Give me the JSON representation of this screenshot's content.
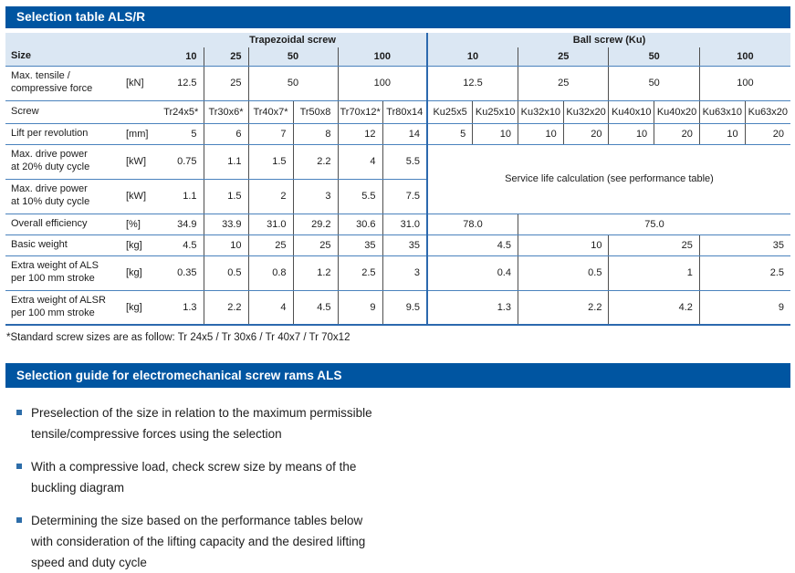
{
  "colors": {
    "brand_blue": "#0055a1",
    "header_row_bg": "#dbe7f3",
    "row_line_blue": "#4a82bd",
    "section_divider_blue": "#2c69ae",
    "column_line_dark": "#4f4f4f",
    "bullet_blue": "#2d6da9"
  },
  "table": {
    "title": "Selection table ALS/R",
    "footnote": "*Standard screw sizes are as follow: Tr 24x5 / Tr 30x6 / Tr 40x7 / Tr 70x12",
    "rows": [
      {
        "cls": "r-group",
        "name": "group-header-row",
        "cells": [
          {
            "t": "",
            "cs": 2,
            "c": "hdr nb"
          },
          {
            "t": "Trapezoidal screw",
            "cs": 6,
            "c": "hdr ctr bold nb",
            "n": "col-group-trapezoidal-screw"
          },
          {
            "t": "Ball screw (Ku)",
            "cs": 8,
            "c": "hdr ctr bold nb bl",
            "n": "col-group-ball-screw"
          }
        ]
      },
      {
        "cls": "r-size",
        "name": "size-row",
        "cells": [
          {
            "t": "Size",
            "cs": 2,
            "c": "hdr lbl bold",
            "n": "row-label-size"
          },
          {
            "t": "10",
            "c": "hdr num bold br"
          },
          {
            "t": "25",
            "c": "hdr num bold br"
          },
          {
            "t": "50",
            "cs": 2,
            "c": "hdr ctr bold br"
          },
          {
            "t": "100",
            "cs": 2,
            "c": "hdr ctr bold"
          },
          {
            "t": "10",
            "cs": 2,
            "c": "hdr ctr bold bl br"
          },
          {
            "t": "25",
            "cs": 2,
            "c": "hdr ctr bold br"
          },
          {
            "t": "50",
            "cs": 2,
            "c": "hdr ctr bold br"
          },
          {
            "t": "100",
            "cs": 2,
            "c": "hdr ctr bold"
          }
        ]
      },
      {
        "cls": "r-tall",
        "name": "max-force-row",
        "cells": [
          {
            "t": "Max. tensile /\ncompressive force",
            "c": "lbl",
            "n": "row-label"
          },
          {
            "t": "[kN]",
            "c": "unit",
            "n": "unit-cell"
          },
          {
            "t": "12.5",
            "c": "num br"
          },
          {
            "t": "25",
            "c": "num br"
          },
          {
            "t": "50",
            "cs": 2,
            "c": "ctr br"
          },
          {
            "t": "100",
            "cs": 2,
            "c": "ctr"
          },
          {
            "t": "12.5",
            "cs": 2,
            "c": "ctr bl br"
          },
          {
            "t": "25",
            "cs": 2,
            "c": "ctr br"
          },
          {
            "t": "50",
            "cs": 2,
            "c": "ctr br"
          },
          {
            "t": "100",
            "cs": 2,
            "c": "ctr"
          }
        ]
      },
      {
        "cls": "r-med",
        "name": "screw-row",
        "cells": [
          {
            "t": "Screw",
            "c": "lbl",
            "n": "row-label"
          },
          {
            "t": "",
            "c": "unit"
          },
          {
            "t": "Tr24x5*",
            "c": "ctr br"
          },
          {
            "t": "Tr30x6*",
            "c": "ctr br"
          },
          {
            "t": "Tr40x7*",
            "c": "ctr br"
          },
          {
            "t": "Tr50x8",
            "c": "ctr br"
          },
          {
            "t": "Tr70x12*",
            "c": "ctr br"
          },
          {
            "t": "Tr80x14",
            "c": "ctr"
          },
          {
            "t": "Ku25x5",
            "c": "ctr bl br"
          },
          {
            "t": "Ku25x10",
            "c": "ctr br"
          },
          {
            "t": "Ku32x10",
            "c": "ctr br"
          },
          {
            "t": "Ku32x20",
            "c": "ctr br"
          },
          {
            "t": "Ku40x10",
            "c": "ctr br"
          },
          {
            "t": "Ku40x20",
            "c": "ctr br"
          },
          {
            "t": "Ku63x10",
            "c": "ctr br"
          },
          {
            "t": "Ku63x20",
            "c": "ctr"
          }
        ]
      },
      {
        "cls": "r-std",
        "name": "lift-row",
        "cells": [
          {
            "t": "Lift per revolution",
            "c": "lbl",
            "n": "row-label"
          },
          {
            "t": "[mm]",
            "c": "unit",
            "n": "unit-cell"
          },
          {
            "t": "5",
            "c": "num br"
          },
          {
            "t": "6",
            "c": "num br"
          },
          {
            "t": "7",
            "c": "num br"
          },
          {
            "t": "8",
            "c": "num br"
          },
          {
            "t": "12",
            "c": "num br"
          },
          {
            "t": "14",
            "c": "num"
          },
          {
            "t": "5",
            "c": "num bl br"
          },
          {
            "t": "10",
            "c": "num br"
          },
          {
            "t": "10",
            "c": "num br"
          },
          {
            "t": "20",
            "c": "num br"
          },
          {
            "t": "10",
            "c": "num br"
          },
          {
            "t": "20",
            "c": "num br"
          },
          {
            "t": "10",
            "c": "num br"
          },
          {
            "t": "20",
            "c": "num"
          }
        ]
      },
      {
        "cls": "r-tall",
        "name": "power-20-row",
        "cells": [
          {
            "t": "Max. drive power\nat 20% duty cycle",
            "c": "lbl",
            "n": "row-label"
          },
          {
            "t": "[kW]",
            "c": "unit",
            "n": "unit-cell"
          },
          {
            "t": "0.75",
            "c": "num br"
          },
          {
            "t": "1.1",
            "c": "num br"
          },
          {
            "t": "1.5",
            "c": "num br"
          },
          {
            "t": "2.2",
            "c": "num br"
          },
          {
            "t": "4",
            "c": "num br"
          },
          {
            "t": "5.5",
            "c": "num"
          },
          {
            "t": "Service life calculation (see performance table)",
            "cs": 8,
            "rs": 2,
            "c": "ctr bl",
            "n": "service-life-note"
          }
        ]
      },
      {
        "cls": "r-tall",
        "name": "power-10-row",
        "cells": [
          {
            "t": "Max. drive power\nat 10% duty cycle",
            "c": "lbl",
            "n": "row-label"
          },
          {
            "t": "[kW]",
            "c": "unit",
            "n": "unit-cell"
          },
          {
            "t": "1.1",
            "c": "num br"
          },
          {
            "t": "1.5",
            "c": "num br"
          },
          {
            "t": "2",
            "c": "num br"
          },
          {
            "t": "3",
            "c": "num br"
          },
          {
            "t": "5.5",
            "c": "num br"
          },
          {
            "t": "7.5",
            "c": "num"
          }
        ]
      },
      {
        "cls": "r-std",
        "name": "efficiency-row",
        "cells": [
          {
            "t": "Overall efficiency",
            "c": "lbl",
            "n": "row-label"
          },
          {
            "t": "[%]",
            "c": "unit",
            "n": "unit-cell"
          },
          {
            "t": "34.9",
            "c": "num br"
          },
          {
            "t": "33.9",
            "c": "num br"
          },
          {
            "t": "31.0",
            "c": "num br"
          },
          {
            "t": "29.2",
            "c": "num br"
          },
          {
            "t": "30.6",
            "c": "num br"
          },
          {
            "t": "31.0",
            "c": "num"
          },
          {
            "t": "78.0",
            "cs": 2,
            "c": "ctr bl br"
          },
          {
            "t": "75.0",
            "cs": 6,
            "c": "ctr"
          }
        ]
      },
      {
        "cls": "r-std",
        "name": "basic-weight-row",
        "cells": [
          {
            "t": "Basic weight",
            "c": "lbl",
            "n": "row-label"
          },
          {
            "t": "[kg]",
            "c": "unit",
            "n": "unit-cell"
          },
          {
            "t": "4.5",
            "c": "num br"
          },
          {
            "t": "10",
            "c": "num br"
          },
          {
            "t": "25",
            "c": "num br"
          },
          {
            "t": "25",
            "c": "num br"
          },
          {
            "t": "35",
            "c": "num br"
          },
          {
            "t": "35",
            "c": "num"
          },
          {
            "t": "4.5",
            "cs": 2,
            "c": "num bl br"
          },
          {
            "t": "10",
            "cs": 2,
            "c": "num br"
          },
          {
            "t": "25",
            "cs": 2,
            "c": "num br"
          },
          {
            "t": "35",
            "cs": 2,
            "c": "num"
          }
        ]
      },
      {
        "cls": "r-tall",
        "name": "extra-weight-als-row",
        "cells": [
          {
            "t": "Extra weight of ALS\nper 100 mm stroke",
            "c": "lbl",
            "n": "row-label"
          },
          {
            "t": "[kg]",
            "c": "unit",
            "n": "unit-cell"
          },
          {
            "t": "0.35",
            "c": "num br"
          },
          {
            "t": "0.5",
            "c": "num br"
          },
          {
            "t": "0.8",
            "c": "num br"
          },
          {
            "t": "1.2",
            "c": "num br"
          },
          {
            "t": "2.5",
            "c": "num br"
          },
          {
            "t": "3",
            "c": "num"
          },
          {
            "t": "0.4",
            "cs": 2,
            "c": "num bl br"
          },
          {
            "t": "0.5",
            "cs": 2,
            "c": "num br"
          },
          {
            "t": "1",
            "cs": 2,
            "c": "num br"
          },
          {
            "t": "2.5",
            "cs": 2,
            "c": "num"
          }
        ]
      },
      {
        "cls": "r-tall last",
        "name": "extra-weight-alsr-row",
        "cells": [
          {
            "t": "Extra weight of ALSR\nper 100 mm stroke",
            "c": "lbl",
            "n": "row-label"
          },
          {
            "t": "[kg]",
            "c": "unit",
            "n": "unit-cell"
          },
          {
            "t": "1.3",
            "c": "num br"
          },
          {
            "t": "2.2",
            "c": "num br"
          },
          {
            "t": "4",
            "c": "num br"
          },
          {
            "t": "4.5",
            "c": "num br"
          },
          {
            "t": "9",
            "c": "num br"
          },
          {
            "t": "9.5",
            "c": "num"
          },
          {
            "t": "1.3",
            "cs": 2,
            "c": "num bl br"
          },
          {
            "t": "2.2",
            "cs": 2,
            "c": "num br"
          },
          {
            "t": "4.2",
            "cs": 2,
            "c": "num br"
          },
          {
            "t": "9",
            "cs": 2,
            "c": "num"
          }
        ]
      }
    ]
  },
  "guide": {
    "title": "Selection guide for electromechanical screw rams ALS",
    "items": [
      [
        "Preselection of the size in relation to the maximum permissible",
        "tensile/compressive forces using the selection"
      ],
      [
        "With a compressive load, check screw size by means of the",
        "buckling diagram"
      ],
      [
        "Determining the size based on the performance tables below",
        "with consideration of the lifting capacity and the desired lifting",
        "speed and duty cycle"
      ]
    ]
  }
}
